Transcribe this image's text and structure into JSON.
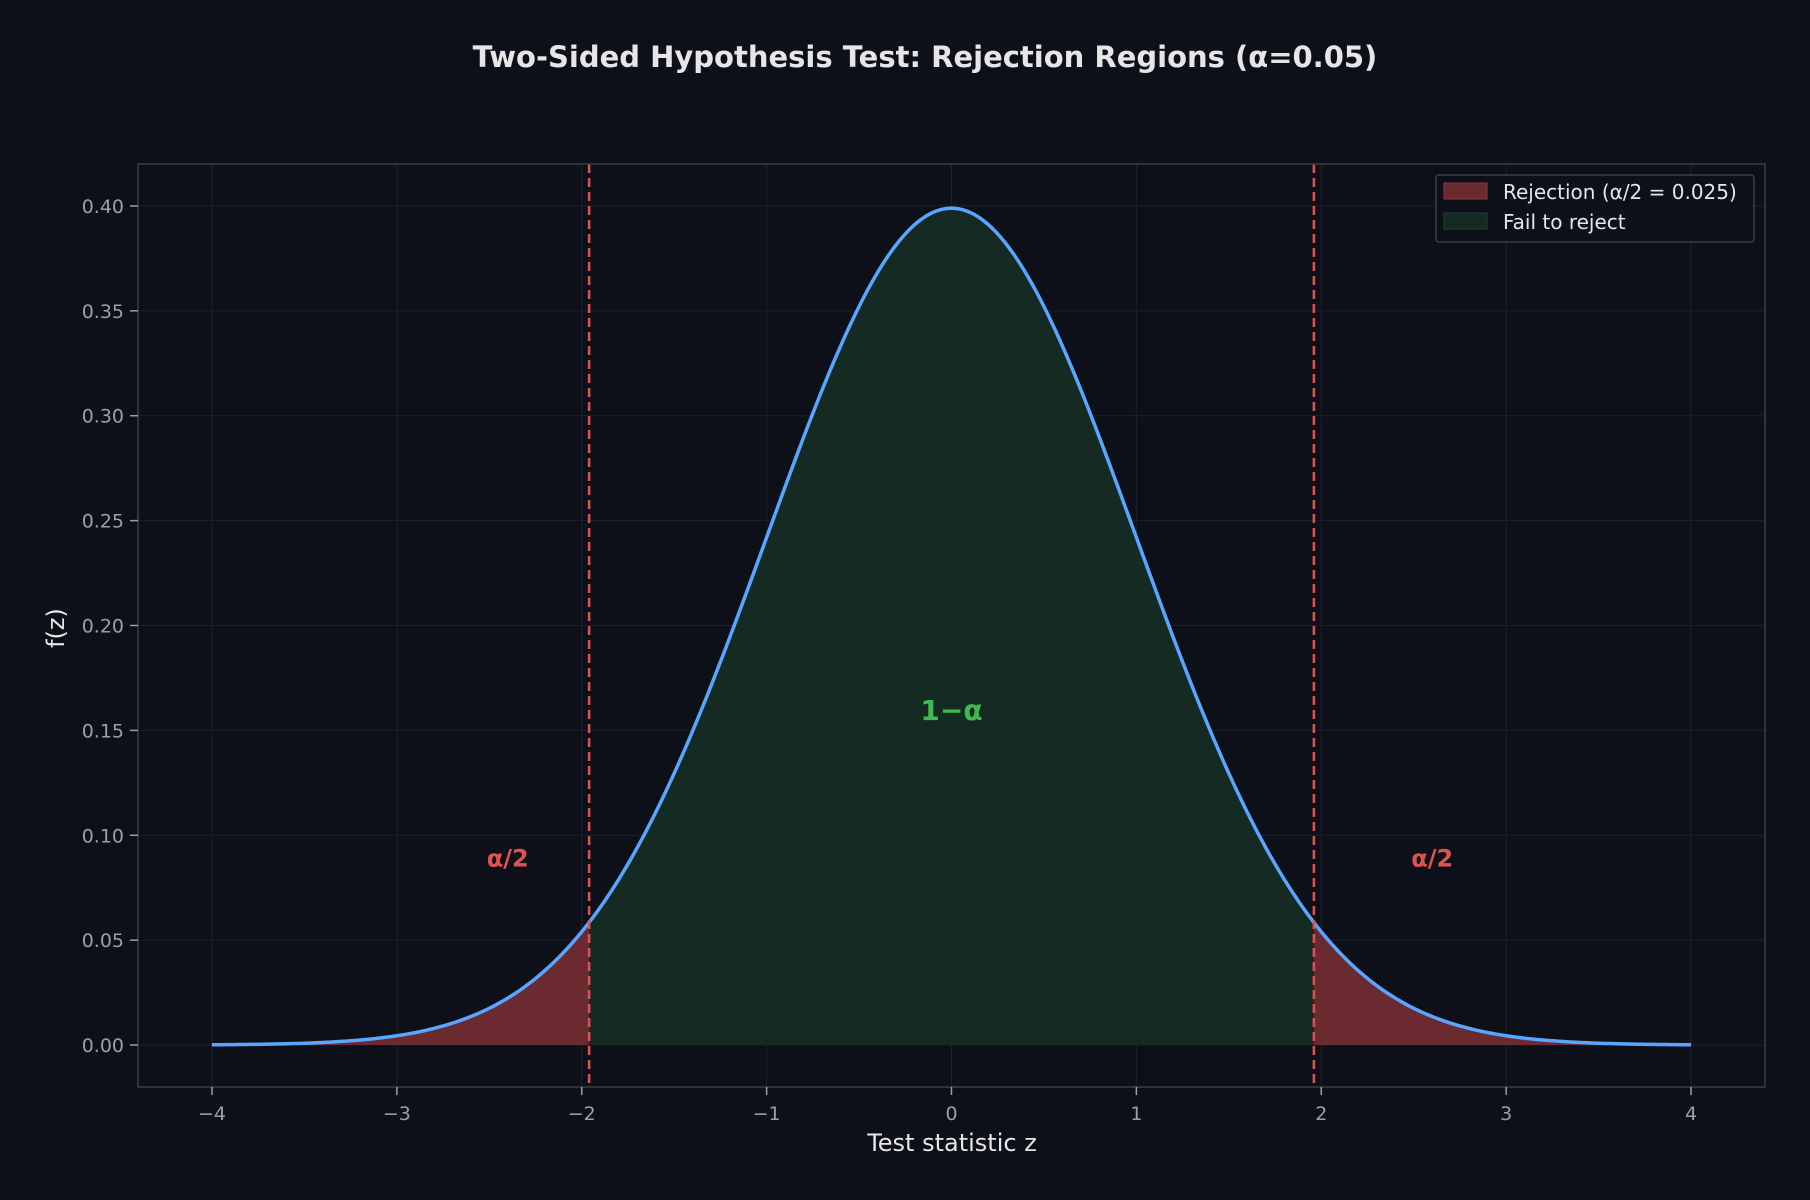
{
  "chart_data": {
    "type": "area",
    "title": "Two-Sided Hypothesis Test: Rejection Regions (α=0.05)",
    "xlabel": "Test statistic z",
    "ylabel": "f(z)",
    "xlim": [
      -4.4,
      4.4
    ],
    "ylim": [
      -0.02,
      0.42
    ],
    "x_ticks": [
      -4,
      -3,
      -2,
      -1,
      0,
      1,
      2,
      3,
      4
    ],
    "x_tick_labels": [
      "−4",
      "−3",
      "−2",
      "−1",
      "0",
      "1",
      "2",
      "3",
      "4"
    ],
    "y_ticks": [
      0.0,
      0.05,
      0.1,
      0.15,
      0.2,
      0.25,
      0.3,
      0.35,
      0.4
    ],
    "y_tick_labels": [
      "0.00",
      "0.05",
      "0.10",
      "0.15",
      "0.20",
      "0.25",
      "0.30",
      "0.35",
      "0.40"
    ],
    "grid": true,
    "distribution": {
      "name": "standard normal",
      "mean": 0,
      "sd": 1,
      "x_range": [
        -4,
        4
      ]
    },
    "critical_values": [
      -1.96,
      1.96
    ],
    "legend_position": "top-right",
    "legend": [
      {
        "label": "Rejection (α/2 = 0.025)",
        "color": "#6b2a30"
      },
      {
        "label": "Fail to reject",
        "color": "#152a22"
      }
    ],
    "annotations": [
      {
        "text": "α/2",
        "x": -2.4,
        "y": 0.085,
        "color": "#e05252"
      },
      {
        "text": "α/2",
        "x": 2.6,
        "y": 0.085,
        "color": "#e05252"
      },
      {
        "text": "1−α",
        "x": 0,
        "y": 0.155,
        "color": "#3fb950"
      }
    ],
    "colors": {
      "curve": "#58a6ff",
      "rejection_fill": "#6b2a30",
      "accept_fill": "#152a22",
      "critical_line": "#e05252",
      "background": "#0d1018",
      "axes_bg": "#0d1018",
      "text": "#e6e6e6",
      "tick_text": "#9aa0a8"
    }
  }
}
